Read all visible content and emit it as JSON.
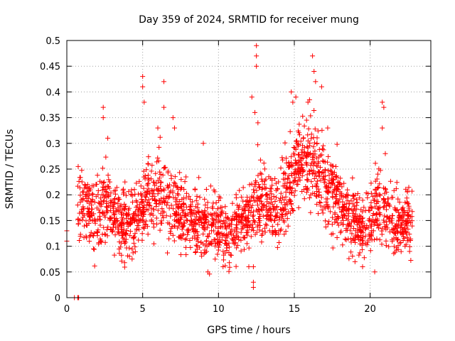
{
  "chart_data": {
    "type": "scatter",
    "title": "Day 359 of 2024, SRMTID for receiver mung",
    "xlabel": "GPS time / hours",
    "ylabel": "SRMTID / TECUs",
    "xlim": [
      0,
      24
    ],
    "ylim": [
      0,
      0.5
    ],
    "xticks": [
      0,
      5,
      10,
      15,
      20
    ],
    "yticks": [
      0,
      0.05,
      0.1,
      0.15,
      0.2,
      0.25,
      0.3,
      0.35,
      0.4,
      0.45,
      0.5
    ],
    "xtick_labels": [
      "0",
      "5",
      "10",
      "15",
      "20"
    ],
    "ytick_labels": [
      "0",
      "0.05",
      "0.1",
      "0.15",
      "0.2",
      "0.25",
      "0.3",
      "0.35",
      "0.4",
      "0.45",
      "0.5"
    ],
    "grid": true,
    "marker": "plus",
    "series_color": "#ff0000",
    "zero_marks": [
      0.5,
      0.72,
      0.75,
      0.78
    ],
    "trend": [
      [
        0.7,
        0.18
      ],
      [
        1.0,
        0.19
      ],
      [
        1.5,
        0.17
      ],
      [
        2.0,
        0.16
      ],
      [
        2.5,
        0.19
      ],
      [
        3.0,
        0.17
      ],
      [
        3.5,
        0.15
      ],
      [
        4.0,
        0.14
      ],
      [
        4.5,
        0.15
      ],
      [
        5.0,
        0.17
      ],
      [
        5.5,
        0.2
      ],
      [
        6.0,
        0.21
      ],
      [
        6.5,
        0.19
      ],
      [
        7.0,
        0.18
      ],
      [
        7.5,
        0.16
      ],
      [
        8.0,
        0.15
      ],
      [
        8.5,
        0.14
      ],
      [
        9.0,
        0.14
      ],
      [
        9.5,
        0.13
      ],
      [
        10.0,
        0.14
      ],
      [
        10.5,
        0.13
      ],
      [
        11.0,
        0.13
      ],
      [
        11.5,
        0.14
      ],
      [
        12.0,
        0.15
      ],
      [
        12.5,
        0.18
      ],
      [
        13.0,
        0.19
      ],
      [
        13.5,
        0.17
      ],
      [
        14.0,
        0.18
      ],
      [
        14.5,
        0.2
      ],
      [
        15.0,
        0.25
      ],
      [
        15.5,
        0.27
      ],
      [
        16.0,
        0.26
      ],
      [
        16.5,
        0.24
      ],
      [
        17.0,
        0.22
      ],
      [
        17.5,
        0.2
      ],
      [
        18.0,
        0.18
      ],
      [
        18.5,
        0.15
      ],
      [
        19.0,
        0.14
      ],
      [
        19.5,
        0.13
      ],
      [
        20.0,
        0.15
      ],
      [
        20.5,
        0.18
      ],
      [
        21.0,
        0.17
      ],
      [
        21.5,
        0.15
      ],
      [
        22.0,
        0.14
      ],
      [
        22.5,
        0.15
      ],
      [
        22.8,
        0.14
      ]
    ],
    "notable_points": [
      [
        0.0,
        0.13
      ],
      [
        0.0,
        0.11
      ],
      [
        2.4,
        0.37
      ],
      [
        2.4,
        0.35
      ],
      [
        2.7,
        0.31
      ],
      [
        5.0,
        0.43
      ],
      [
        5.0,
        0.41
      ],
      [
        5.1,
        0.38
      ],
      [
        6.4,
        0.42
      ],
      [
        6.4,
        0.37
      ],
      [
        6.0,
        0.33
      ],
      [
        7.0,
        0.35
      ],
      [
        7.1,
        0.33
      ],
      [
        9.0,
        0.3
      ],
      [
        9.3,
        0.05
      ],
      [
        10.3,
        0.06
      ],
      [
        12.0,
        0.06
      ],
      [
        12.3,
        0.06
      ],
      [
        12.3,
        0.02
      ],
      [
        12.3,
        0.03
      ],
      [
        12.5,
        0.49
      ],
      [
        12.5,
        0.47
      ],
      [
        12.5,
        0.45
      ],
      [
        12.2,
        0.39
      ],
      [
        12.4,
        0.36
      ],
      [
        12.6,
        0.34
      ],
      [
        14.8,
        0.4
      ],
      [
        14.9,
        0.38
      ],
      [
        15.1,
        0.39
      ],
      [
        15.9,
        0.38
      ],
      [
        16.2,
        0.47
      ],
      [
        16.3,
        0.44
      ],
      [
        16.4,
        0.42
      ],
      [
        16.8,
        0.41
      ],
      [
        17.2,
        0.33
      ],
      [
        19.0,
        0.07
      ],
      [
        19.5,
        0.06
      ],
      [
        20.3,
        0.05
      ],
      [
        20.8,
        0.38
      ],
      [
        20.9,
        0.37
      ],
      [
        20.8,
        0.33
      ],
      [
        21.0,
        0.28
      ],
      [
        22.3,
        0.1
      ],
      [
        22.6,
        0.09
      ]
    ],
    "note": "Dense scatter of several thousand '+' markers; the bulk of points are summarized by the trend band plus scatter, with clearly visible outliers listed in notable_points."
  }
}
